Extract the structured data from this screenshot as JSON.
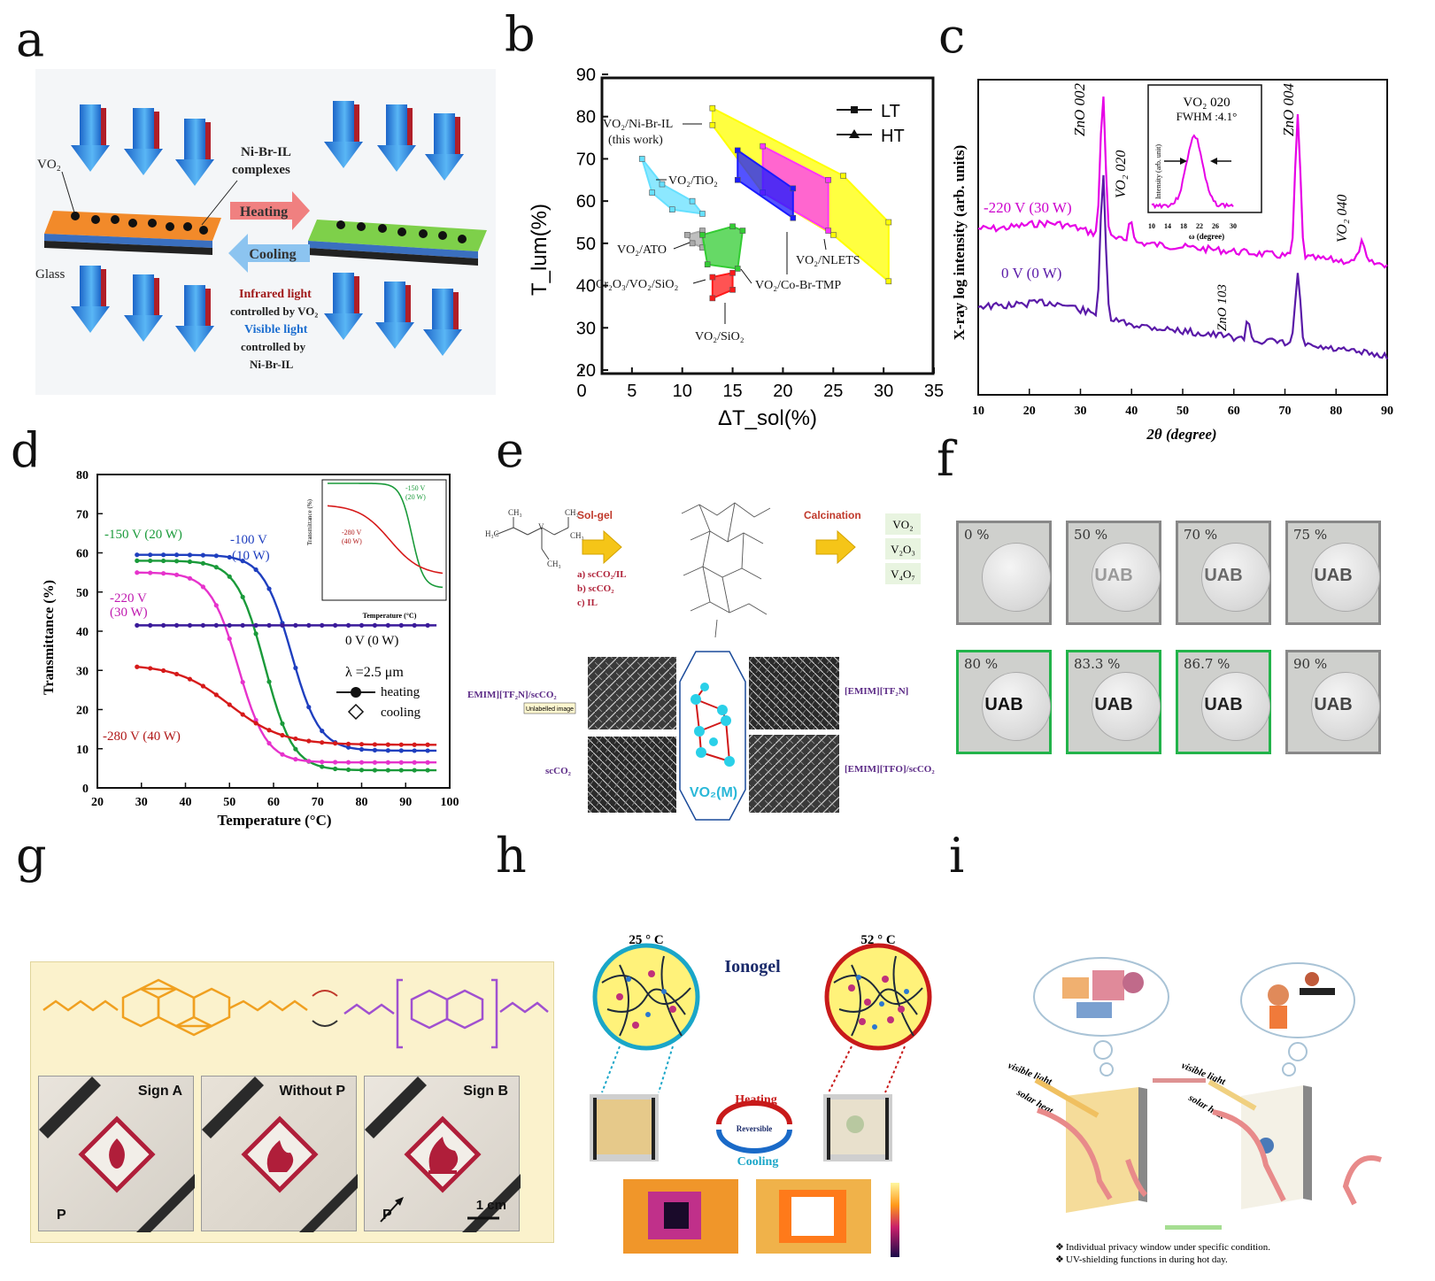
{
  "labels": {
    "a": "a",
    "b": "b",
    "c": "c",
    "d": "d",
    "e": "e",
    "f": "f",
    "g": "g",
    "h": "h",
    "i": "i"
  },
  "panel_a": {
    "vo2": "VO₂",
    "complex": "Ni-Br-IL",
    "complex2": "complexes",
    "heating": "Heating",
    "cooling": "Cooling",
    "glass": "Glass",
    "ir1": "Infrared light",
    "ir2": "controlled by VO₂",
    "vis1": "Visible light",
    "vis2": "controlled by",
    "vis3": "Ni-Br-IL"
  },
  "panel_b": {
    "ylabel": "T_lum(%)",
    "xlabel": "ΔT_sol(%)",
    "legend": [
      "LT",
      "HT"
    ],
    "labels": {
      "nibr": "VO₂/Ni-Br-IL",
      "thiswork": "(this work)",
      "tio2": "VO₂/TiO₂",
      "ato": "VO₂/ATO",
      "cr": "Cr₂O₃/VO₂/SiO₂",
      "sio2": "VO₂/SiO₂",
      "cobr": "VO₂/Co-Br-TMP",
      "nlets": "VO₂/NLETS"
    }
  },
  "panel_c": {
    "ylabel": "X-ray log intensity (arb. units)",
    "xlabel": "2θ (degree)",
    "labels": {
      "zno002": "ZnO 002",
      "vo2020": "VO₂ 020",
      "zno004": "ZnO 004",
      "vo2040": "VO₂ 040",
      "zno103": "ZnO 103",
      "minus220": "-220 V (30 W)",
      "zero": "0 V (0 W)"
    },
    "inset": {
      "title": "VO₂ 020",
      "fwhm": "FWHM :4.1°",
      "ylabel": "Intensity (arb. unit)",
      "xlabel": "ω (degree)"
    }
  },
  "panel_d": {
    "ylabel": "Transmittance (%)",
    "xlabel": "Temperature (°C)",
    "labels": {
      "m150": "-150 V (20 W)",
      "m100a": "-100 V",
      "m100b": "(10 W)",
      "m220a": "-220 V",
      "m220b": "(30 W)",
      "zero": "0 V (0 W)",
      "m280": "-280 V (40 W)",
      "lambda": "λ =2.5 μm",
      "heating": "heating",
      "cooling": "cooling"
    },
    "inset": {
      "ylabel": "Transmittance (%)",
      "xlabel": "Temperature (°C)",
      "l150a": "-150 V",
      "l150b": "(20 W)",
      "l280a": "-280 V",
      "l280b": "(40 W)"
    }
  },
  "panel_e": {
    "solgel": "Sol-gel",
    "calcination": "Calcination",
    "routes": [
      "a) scCO₂/IL",
      "b) scCO₂",
      "c) IL"
    ],
    "products": [
      "VO₂",
      "V₂O₃",
      "V₄O₇"
    ],
    "sem": [
      "EMIM][TF₂N]/scCO₂",
      "[EMIM][TF₂N]",
      "scCO₂",
      "[EMIM][TFO]/scCO₂"
    ],
    "crystal": "VO₂(M)",
    "badge": "Unlabelled image"
  },
  "panel_f": {
    "tiles": [
      {
        "pct": "0 %",
        "uab": ""
      },
      {
        "pct": "50 %",
        "uab": "UAB"
      },
      {
        "pct": "70 %",
        "uab": "UAB"
      },
      {
        "pct": "75 %",
        "uab": "UAB"
      },
      {
        "pct": "80 %",
        "uab": "UAB"
      },
      {
        "pct": "83.3 %",
        "uab": "UAB"
      },
      {
        "pct": "86.7 %",
        "uab": "UAB"
      },
      {
        "pct": "90 %",
        "uab": "UAB"
      }
    ]
  },
  "panel_g": {
    "photos": [
      "Sign A",
      "Without P",
      "Sign B"
    ],
    "p": "P",
    "scale": "1 cm"
  },
  "panel_h": {
    "t1": "25 ° C",
    "t2": "52 ° C",
    "ionogel": "Ionogel",
    "heating": "Heating",
    "reversible": "Reversible",
    "cooling": "Cooling"
  },
  "panel_i": {
    "visible": "visible light",
    "solar": "solar heat",
    "bullets": [
      "Individual privacy window under specific condition.",
      "UV-shielding functions in during hot day."
    ]
  },
  "chart_data": [
    {
      "type": "scatter",
      "panel": "b",
      "xlabel": "ΔT_sol(%)",
      "ylabel": "T_lum(%)",
      "xlim": [
        0,
        35
      ],
      "ylim": [
        20,
        90
      ],
      "xticks": [
        0,
        5,
        10,
        15,
        20,
        25,
        30,
        35
      ],
      "yticks": [
        20,
        30,
        40,
        50,
        60,
        70,
        80,
        90
      ],
      "series": [
        {
          "name": "VO₂/Ni-Br-IL",
          "color": "#ffff00",
          "points": [
            [
              13,
              82
            ],
            [
              26,
              66
            ],
            [
              30.5,
              55
            ],
            [
              30.5,
              41
            ],
            [
              25,
              52
            ],
            [
              18,
              62
            ],
            [
              13,
              78
            ]
          ]
        },
        {
          "name": "VO₂/NLETS",
          "color": "#ff33ff",
          "points": [
            [
              18,
              73
            ],
            [
              24.5,
              65
            ],
            [
              24.5,
              53
            ],
            [
              18,
              62
            ]
          ]
        },
        {
          "name": "VO₂/Co-Br-TMP",
          "color": "#1a1aff",
          "points": [
            [
              15.5,
              72
            ],
            [
              21,
              63
            ],
            [
              21,
              56
            ],
            [
              15.5,
              65
            ]
          ]
        },
        {
          "name": "VO₂/TiO₂",
          "color": "#66e0ff",
          "points": [
            [
              6,
              70
            ],
            [
              8,
              64
            ],
            [
              11,
              60
            ],
            [
              12,
              57
            ],
            [
              9,
              58
            ],
            [
              7,
              62
            ]
          ]
        },
        {
          "name": "VO₂/ATO",
          "color": "#aaaaaa",
          "points": [
            [
              10.5,
              52
            ],
            [
              12,
              53
            ],
            [
              12,
              49
            ],
            [
              11,
              50
            ]
          ]
        },
        {
          "name": "Cr₂O₃/VO₂/SiO₂",
          "color": "#33cc33",
          "points": [
            [
              12,
              52
            ],
            [
              15,
              54
            ],
            [
              16,
              53
            ],
            [
              15.5,
              44
            ],
            [
              12.5,
              45
            ]
          ]
        },
        {
          "name": "VO₂/SiO₂",
          "color": "#ff1a1a",
          "points": [
            [
              13,
              42
            ],
            [
              15,
              43
            ],
            [
              15,
              39
            ],
            [
              13,
              37
            ]
          ]
        }
      ],
      "legend": [
        "LT",
        "HT"
      ]
    },
    {
      "type": "line",
      "panel": "c",
      "xlabel": "2θ (degree)",
      "ylabel": "X-ray log intensity (arb. units)",
      "xlim": [
        10,
        90
      ],
      "xticks": [
        10,
        20,
        30,
        40,
        50,
        60,
        70,
        80,
        90
      ],
      "series": [
        {
          "name": "-220 V (30 W)",
          "color": "#e600e6",
          "peaks": [
            [
              34.4,
              "ZnO 002"
            ],
            [
              39.8,
              "VO₂ 020"
            ],
            [
              72.5,
              "ZnO 004"
            ],
            [
              85,
              "VO₂ 040"
            ]
          ]
        },
        {
          "name": "0 V (0 W)",
          "color": "#5a1aa8",
          "peaks": [
            [
              34.4,
              "ZnO 002"
            ],
            [
              62.8,
              "ZnO 103"
            ],
            [
              72.5,
              "ZnO 004"
            ]
          ]
        }
      ]
    },
    {
      "type": "line",
      "panel": "d",
      "xlabel": "Temperature (°C)",
      "ylabel": "Transmittance (%)",
      "xlim": [
        20,
        100
      ],
      "ylim": [
        0,
        80
      ],
      "xticks": [
        20,
        30,
        40,
        50,
        60,
        70,
        80,
        90,
        100
      ],
      "yticks": [
        0,
        10,
        20,
        30,
        40,
        50,
        60,
        70,
        80
      ],
      "series": [
        {
          "name": "-100 V (10 W)",
          "color": "#1f3fbf",
          "low": 29,
          "high": 97,
          "start": 59.5,
          "end": 9.5,
          "t0": 64
        },
        {
          "name": "-150 V (20 W)",
          "color": "#1a9a3a",
          "low": 29,
          "high": 97,
          "start": 58,
          "end": 4.5,
          "t0": 58
        },
        {
          "name": "-220 V (30 W)",
          "color": "#e633cc",
          "low": 29,
          "high": 97,
          "start": 55,
          "end": 6.5,
          "t0": 52
        },
        {
          "name": "0 V (0 W)",
          "color": "#3a1a9a",
          "low": 29,
          "high": 97,
          "start": 41.5,
          "end": 41.5,
          "t0": 60
        },
        {
          "name": "-280 V (40 W)",
          "color": "#d61a1a",
          "low": 29,
          "high": 97,
          "start": 31.5,
          "end": 11,
          "t0": 50
        }
      ]
    }
  ]
}
